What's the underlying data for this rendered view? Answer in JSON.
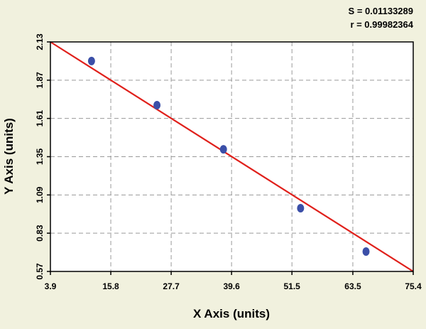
{
  "chart_data": {
    "type": "scatter",
    "stats": {
      "s_label": "S = 0.01133289",
      "r_label": "r = 0.99982364"
    },
    "xlabel": "X Axis (units)",
    "ylabel": "Y Axis (units)",
    "xlim": [
      3.9,
      75.4
    ],
    "ylim": [
      0.57,
      2.13
    ],
    "x_ticks": [
      3.9,
      15.8,
      27.7,
      39.6,
      51.5,
      63.5,
      75.4
    ],
    "x_tick_labels": [
      "3.9",
      "15.8",
      "27.7",
      "39.6",
      "51.5",
      "63.5",
      "75.4"
    ],
    "y_ticks": [
      0.57,
      0.83,
      1.09,
      1.35,
      1.61,
      1.87,
      2.13
    ],
    "y_tick_labels": [
      "0.57",
      "0.83",
      "1.09",
      "1.35",
      "1.61",
      "1.87",
      "2.13"
    ],
    "grid": true,
    "points": [
      {
        "x": 12.0,
        "y": 2.0
      },
      {
        "x": 24.9,
        "y": 1.7
      },
      {
        "x": 38.0,
        "y": 1.4
      },
      {
        "x": 53.2,
        "y": 1.0
      },
      {
        "x": 66.1,
        "y": 0.705
      }
    ],
    "fit_line": {
      "x": [
        3.9,
        75.4
      ],
      "y": [
        2.13,
        0.57
      ]
    },
    "colors": {
      "point": "#3b4fa8",
      "line": "#e0201b",
      "background": "#f1f1de",
      "plot_background": "#ffffff"
    }
  }
}
